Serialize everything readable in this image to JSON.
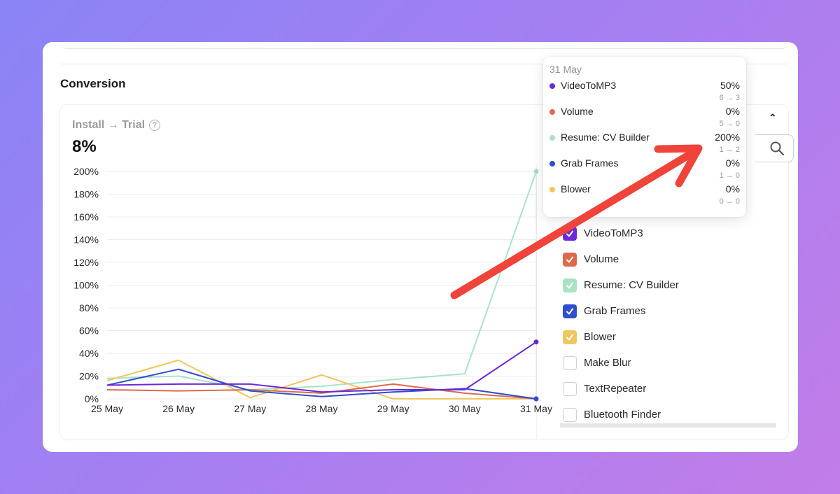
{
  "section_title": "Conversion",
  "metric": {
    "label": "Install → Trial",
    "help_icon": "?",
    "value": "8%"
  },
  "collapse_icon": "⌃",
  "legend_items": [
    {
      "label": "VideoToMP3",
      "checked": true,
      "color": "#6d28d9"
    },
    {
      "label": "Volume",
      "checked": true,
      "color": "#e0694a"
    },
    {
      "label": "Resume: CV Builder",
      "checked": true,
      "color": "#a8e3c4"
    },
    {
      "label": "Grab Frames",
      "checked": true,
      "color": "#2f4fcf"
    },
    {
      "label": "Blower",
      "checked": true,
      "color": "#f0c75e"
    },
    {
      "label": "Make Blur",
      "checked": false,
      "color": "#ffffff"
    },
    {
      "label": "TextRepeater",
      "checked": false,
      "color": "#ffffff"
    },
    {
      "label": "Bluetooth Finder",
      "checked": false,
      "color": "#ffffff"
    }
  ],
  "tooltip": {
    "date": "31 May",
    "rows": [
      {
        "name": "VideoToMP3",
        "pct": "50%",
        "sub": "6 → 3",
        "color": "#6d28d9"
      },
      {
        "name": "Volume",
        "pct": "0%",
        "sub": "5 → 0",
        "color": "#e0694a"
      },
      {
        "name": "Resume: CV Builder",
        "pct": "200%",
        "sub": "1 → 2",
        "color": "#a8e3c4"
      },
      {
        "name": "Grab Frames",
        "pct": "0%",
        "sub": "1 → 0",
        "color": "#2f4fcf"
      },
      {
        "name": "Blower",
        "pct": "0%",
        "sub": "0 → 0",
        "color": "#f0c75e"
      }
    ]
  },
  "annotation_color": "#f0433a",
  "chart_data": {
    "type": "line",
    "categories": [
      "25 May",
      "26 May",
      "27 May",
      "28 May",
      "29 May",
      "30 May",
      "31 May"
    ],
    "y_ticks": [
      "0%",
      "20%",
      "40%",
      "60%",
      "80%",
      "100%",
      "120%",
      "140%",
      "160%",
      "180%",
      "200%"
    ],
    "ylim": [
      0,
      200
    ],
    "grid": true,
    "series": [
      {
        "name": "Resume: CV Builder",
        "color": "#a8e3c4",
        "values": [
          18,
          20,
          8,
          11,
          17,
          22,
          200
        ]
      },
      {
        "name": "Blower",
        "color": "#f0c75e",
        "values": [
          16,
          34,
          1,
          21,
          0,
          0,
          0
        ]
      },
      {
        "name": "Volume",
        "color": "#e0694a",
        "values": [
          8,
          7,
          8,
          5,
          13,
          5,
          0
        ]
      },
      {
        "name": "Grab Frames",
        "color": "#2f4fcf",
        "values": [
          12,
          26,
          7,
          2,
          6,
          9,
          0
        ]
      },
      {
        "name": "VideoToMP3",
        "color": "#6d28d9",
        "values": [
          12,
          13,
          13,
          6,
          8,
          8,
          50
        ]
      }
    ]
  }
}
